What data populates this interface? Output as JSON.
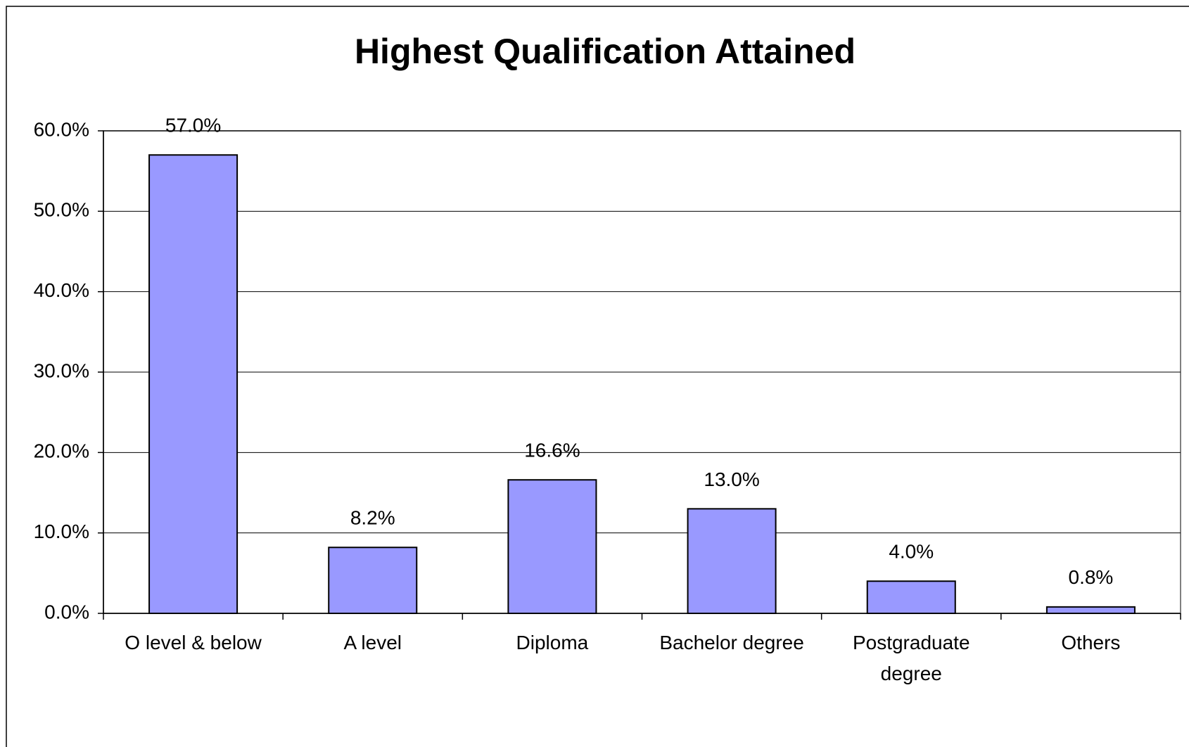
{
  "chart_data": {
    "type": "bar",
    "title": "Highest Qualification Attained",
    "categories": [
      "O level & below",
      "A level",
      "Diploma",
      "Bachelor degree",
      "Postgraduate degree",
      "Others"
    ],
    "values": [
      57.0,
      8.2,
      16.6,
      13.0,
      4.0,
      0.8
    ],
    "value_labels": [
      "57.0%",
      "8.2%",
      "16.6%",
      "13.0%",
      "4.0%",
      "0.8%"
    ],
    "color": "#9999ff",
    "ylim": [
      0,
      60
    ],
    "yticks": [
      {
        "value": 0,
        "label": "0.0%"
      },
      {
        "value": 10,
        "label": "10.0%"
      },
      {
        "value": 20,
        "label": "20.0%"
      },
      {
        "value": 30,
        "label": "30.0%"
      },
      {
        "value": 40,
        "label": "40.0%"
      },
      {
        "value": 50,
        "label": "50.0%"
      },
      {
        "value": 60,
        "label": "60.0%"
      }
    ],
    "grid": true
  }
}
